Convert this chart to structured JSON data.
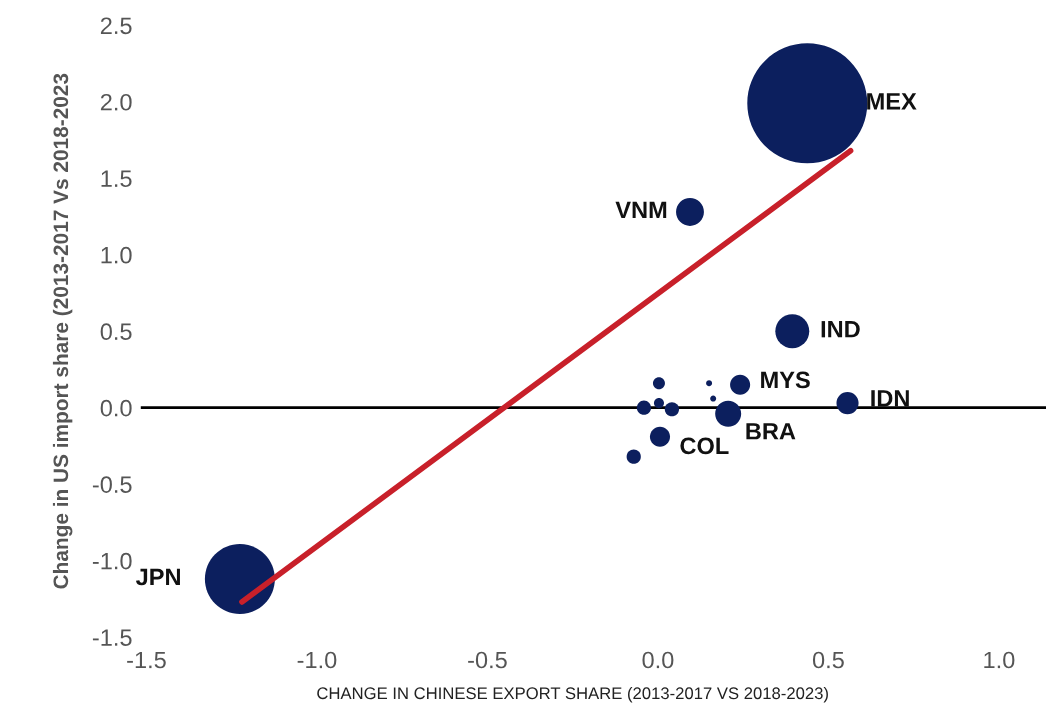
{
  "chart_data": {
    "type": "bubble",
    "xlabel": "CHANGE IN CHINESE EXPORT SHARE (2013-2017 VS 2018-2023)",
    "ylabel": "Change in US import share (2013-2017 Vs 2018-2023",
    "xlim": [
      -1.5,
      1.0
    ],
    "ylim": [
      -1.5,
      2.5
    ],
    "xticks": [
      {
        "value": -1.5,
        "label": "-1.5"
      },
      {
        "value": -1.0,
        "label": "-1.0"
      },
      {
        "value": -0.5,
        "label": "-0.5"
      },
      {
        "value": 0.0,
        "label": "0.0"
      },
      {
        "value": 0.5,
        "label": "0.5"
      },
      {
        "value": 1.0,
        "label": "1.0"
      }
    ],
    "yticks": [
      {
        "value": -1.5,
        "label": "-1.5"
      },
      {
        "value": -1.0,
        "label": "-1.0"
      },
      {
        "value": -0.5,
        "label": "-0.5"
      },
      {
        "value": 0.0,
        "label": "0.0"
      },
      {
        "value": 0.5,
        "label": "0.5"
      },
      {
        "value": 1.0,
        "label": "1.0"
      },
      {
        "value": 1.5,
        "label": "1.5"
      },
      {
        "value": 2.0,
        "label": "2.0"
      },
      {
        "value": 2.5,
        "label": "2.5"
      }
    ],
    "grid": false,
    "ref_lines": [
      {
        "axis": "y",
        "value": 0,
        "color": "#000000"
      }
    ],
    "series": [
      {
        "color": "#0c1f5e",
        "x": [
          0.438,
          0.094,
          0.394,
          0.241,
          0.556,
          0.206,
          0.006,
          -1.226,
          -0.071,
          0.003,
          -0.041,
          0.003,
          0.041,
          0.15,
          0.162
        ],
        "values": [
          1.99,
          1.28,
          0.5,
          0.15,
          0.03,
          -0.04,
          -0.19,
          -1.12,
          -0.32,
          0.16,
          0.0,
          0.03,
          -0.01,
          0.16,
          0.06
        ],
        "sizes": [
          1,
          0.054,
          0.08,
          0.028,
          0.034,
          0.047,
          0.028,
          0.34,
          0.014,
          0.01,
          0.014,
          0.007,
          0.014,
          0.0025,
          0.0025
        ]
      },
      {
        "type": "line",
        "color": "#c8202a",
        "x": [
          -1.22,
          0.565
        ],
        "values": [
          -1.27,
          1.68
        ]
      }
    ],
    "annotations": [
      {
        "text": "MEX",
        "x": 0.438,
        "y": 1.99
      },
      {
        "text": "VNM",
        "x": 0.094,
        "y": 1.28
      },
      {
        "text": "IND",
        "x": 0.394,
        "y": 0.5
      },
      {
        "text": "MYS",
        "x": 0.241,
        "y": 0.15
      },
      {
        "text": "IDN",
        "x": 0.556,
        "y": 0.03
      },
      {
        "text": "BRA",
        "x": 0.206,
        "y": -0.04
      },
      {
        "text": "COL",
        "x": 0.006,
        "y": -0.19
      },
      {
        "text": "JPN",
        "x": -1.226,
        "y": -1.12
      }
    ]
  }
}
